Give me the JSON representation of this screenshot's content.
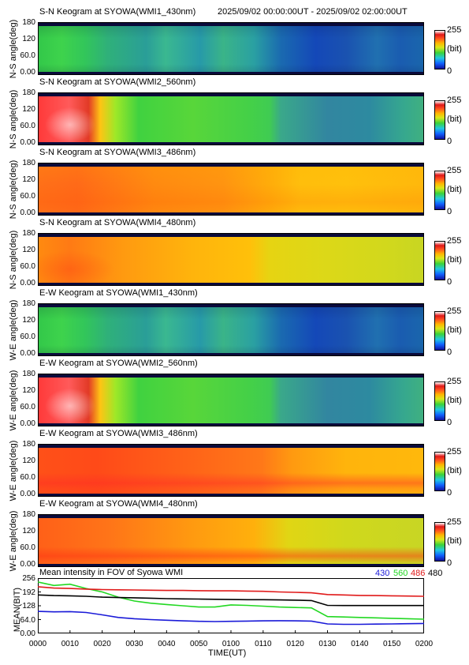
{
  "header": {
    "time_range": "2025/09/02 00:00:00UT - 2025/09/02 02:00:00UT"
  },
  "colorbar": {
    "max": "255",
    "unit": "(bit)",
    "min": "0"
  },
  "keogram_yticks": [
    "180",
    "120",
    "60.0",
    "0.00"
  ],
  "panels": [
    {
      "title": "S-N Keogram at SYOWA(WMI1_430nm)",
      "ylabel": "N-S angle(deg)",
      "palette": "430"
    },
    {
      "title": "S-N Keogram at SYOWA(WMI2_560nm)",
      "ylabel": "N-S angle(deg)",
      "palette": "560"
    },
    {
      "title": "S-N Keogram at SYOWA(WMI3_486nm)",
      "ylabel": "N-S angle(deg)",
      "palette": "486"
    },
    {
      "title": "S-N Keogram at SYOWA(WMI4_480nm)",
      "ylabel": "N-S angle(deg)",
      "palette": "480"
    },
    {
      "title": "E-W Keogram at SYOWA(WMI1_430nm)",
      "ylabel": "W-E angle(deg)",
      "palette": "430"
    },
    {
      "title": "E-W Keogram at SYOWA(WMI2_560nm)",
      "ylabel": "W-E angle(deg)",
      "palette": "560"
    },
    {
      "title": "E-W Keogram at SYOWA(WMI3_486nm)",
      "ylabel": "W-E angle(deg)",
      "palette": "486ew"
    },
    {
      "title": "E-W Keogram at SYOWA(WMI4_480nm)",
      "ylabel": "W-E angle(deg)",
      "palette": "480ew"
    }
  ],
  "chart_data": {
    "type": "line",
    "title": "Mean intensity in FOV of Syowa WMI",
    "xlabel": "TIME(UT)",
    "ylabel": "MEAN(BIT)",
    "xlim": [
      0,
      120
    ],
    "ylim": [
      0,
      256
    ],
    "x_tick_labels": [
      "0000",
      "0010",
      "0020",
      "0030",
      "0040",
      "0050",
      "0100",
      "0110",
      "0120",
      "0130",
      "0140",
      "0150",
      "0200"
    ],
    "y_tick_labels": [
      "256",
      "192",
      "128",
      "64.0",
      "0.00"
    ],
    "x": [
      0,
      5,
      10,
      15,
      20,
      25,
      30,
      35,
      40,
      45,
      50,
      55,
      60,
      65,
      70,
      75,
      80,
      85,
      90,
      95,
      100,
      105,
      110,
      115,
      120
    ],
    "series": [
      {
        "name": "430",
        "color": "#1a1ad8",
        "values": [
          102,
          100,
          101,
          97,
          86,
          74,
          68,
          64,
          61,
          58,
          56,
          55,
          56,
          57,
          58,
          59,
          58,
          57,
          44,
          42,
          42,
          43,
          44,
          45,
          46
        ]
      },
      {
        "name": "560",
        "color": "#22d822",
        "values": [
          238,
          222,
          228,
          208,
          192,
          168,
          150,
          140,
          134,
          128,
          122,
          122,
          132,
          130,
          126,
          122,
          120,
          118,
          78,
          76,
          74,
          72,
          70,
          68,
          66
        ]
      },
      {
        "name": "486",
        "color": "#e01a1a",
        "values": [
          216,
          210,
          208,
          205,
          203,
          202,
          201,
          200,
          199,
          199,
          198,
          197,
          197,
          196,
          195,
          192,
          190,
          188,
          180,
          178,
          176,
          175,
          174,
          173,
          172
        ]
      },
      {
        "name": "480",
        "color": "#000000",
        "values": [
          178,
          175,
          174,
          172,
          168,
          166,
          165,
          163,
          161,
          160,
          159,
          158,
          157,
          156,
          156,
          155,
          154,
          152,
          130,
          129,
          129,
          129,
          129,
          129,
          129
        ]
      }
    ]
  }
}
